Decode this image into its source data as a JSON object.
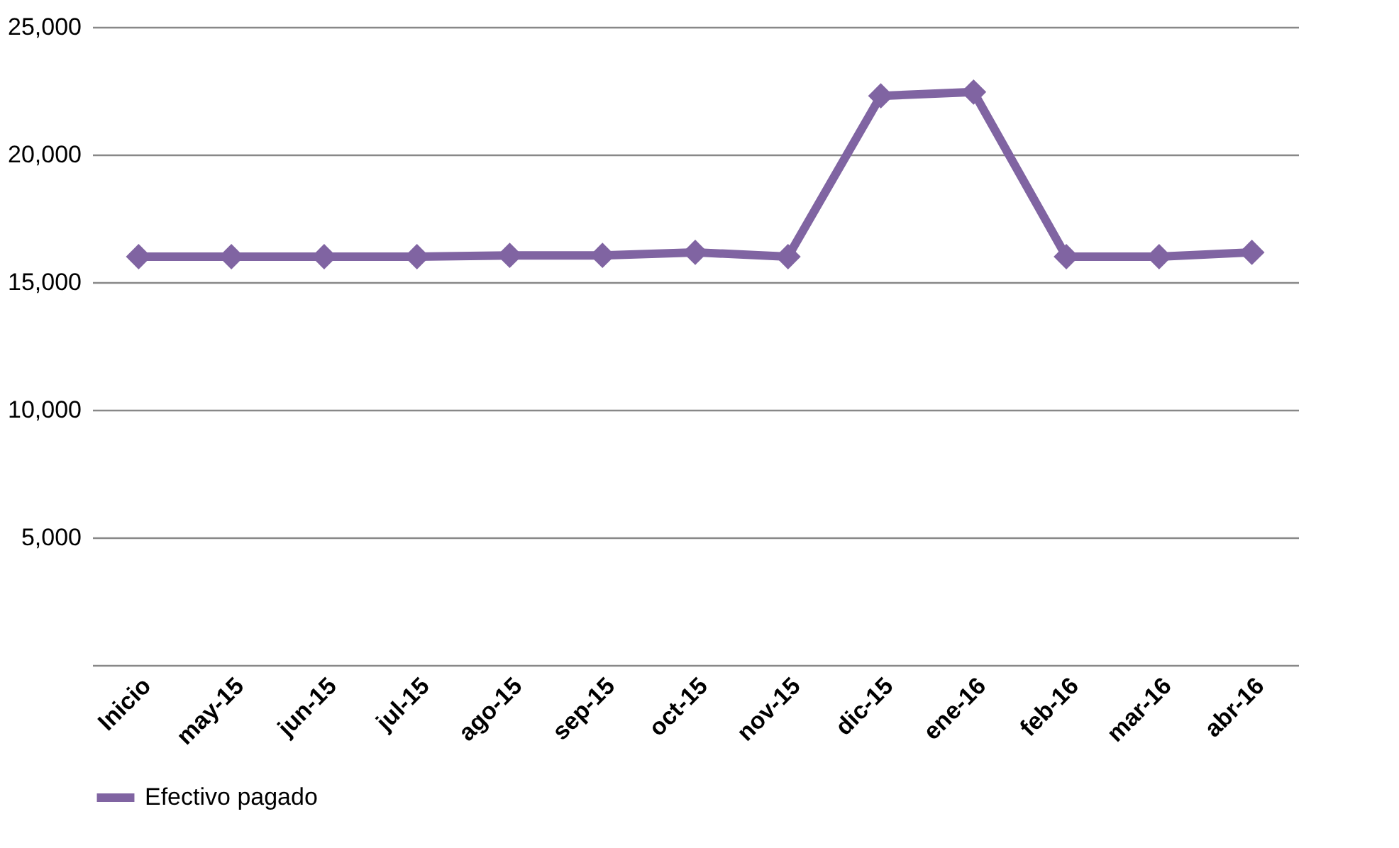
{
  "chart_data": {
    "type": "line",
    "categories": [
      "Inicio",
      "may-15",
      "jun-15",
      "jul-15",
      "ago-15",
      "sep-15",
      "oct-15",
      "nov-15",
      "dic-15",
      "ene-16",
      "feb-16",
      "mar-16",
      "abr-16"
    ],
    "series": [
      {
        "name": "Efectivo pagado",
        "color": "#8064a2",
        "values": [
          16000,
          16000,
          16000,
          16000,
          16050,
          16050,
          16170,
          16000,
          22300,
          22450,
          16000,
          16000,
          16170
        ]
      }
    ],
    "ylim": [
      0,
      25000
    ],
    "yticks": [
      {
        "value": 0,
        "label": null
      },
      {
        "value": 5000,
        "label": "5,000"
      },
      {
        "value": 10000,
        "label": "10,000"
      },
      {
        "value": 15000,
        "label": "15,000"
      },
      {
        "value": 20000,
        "label": "20,000"
      },
      {
        "value": 25000,
        "label": "25,000"
      }
    ],
    "grid": "y",
    "legend": "bottom",
    "marker": "diamond",
    "line_style": "solid"
  }
}
